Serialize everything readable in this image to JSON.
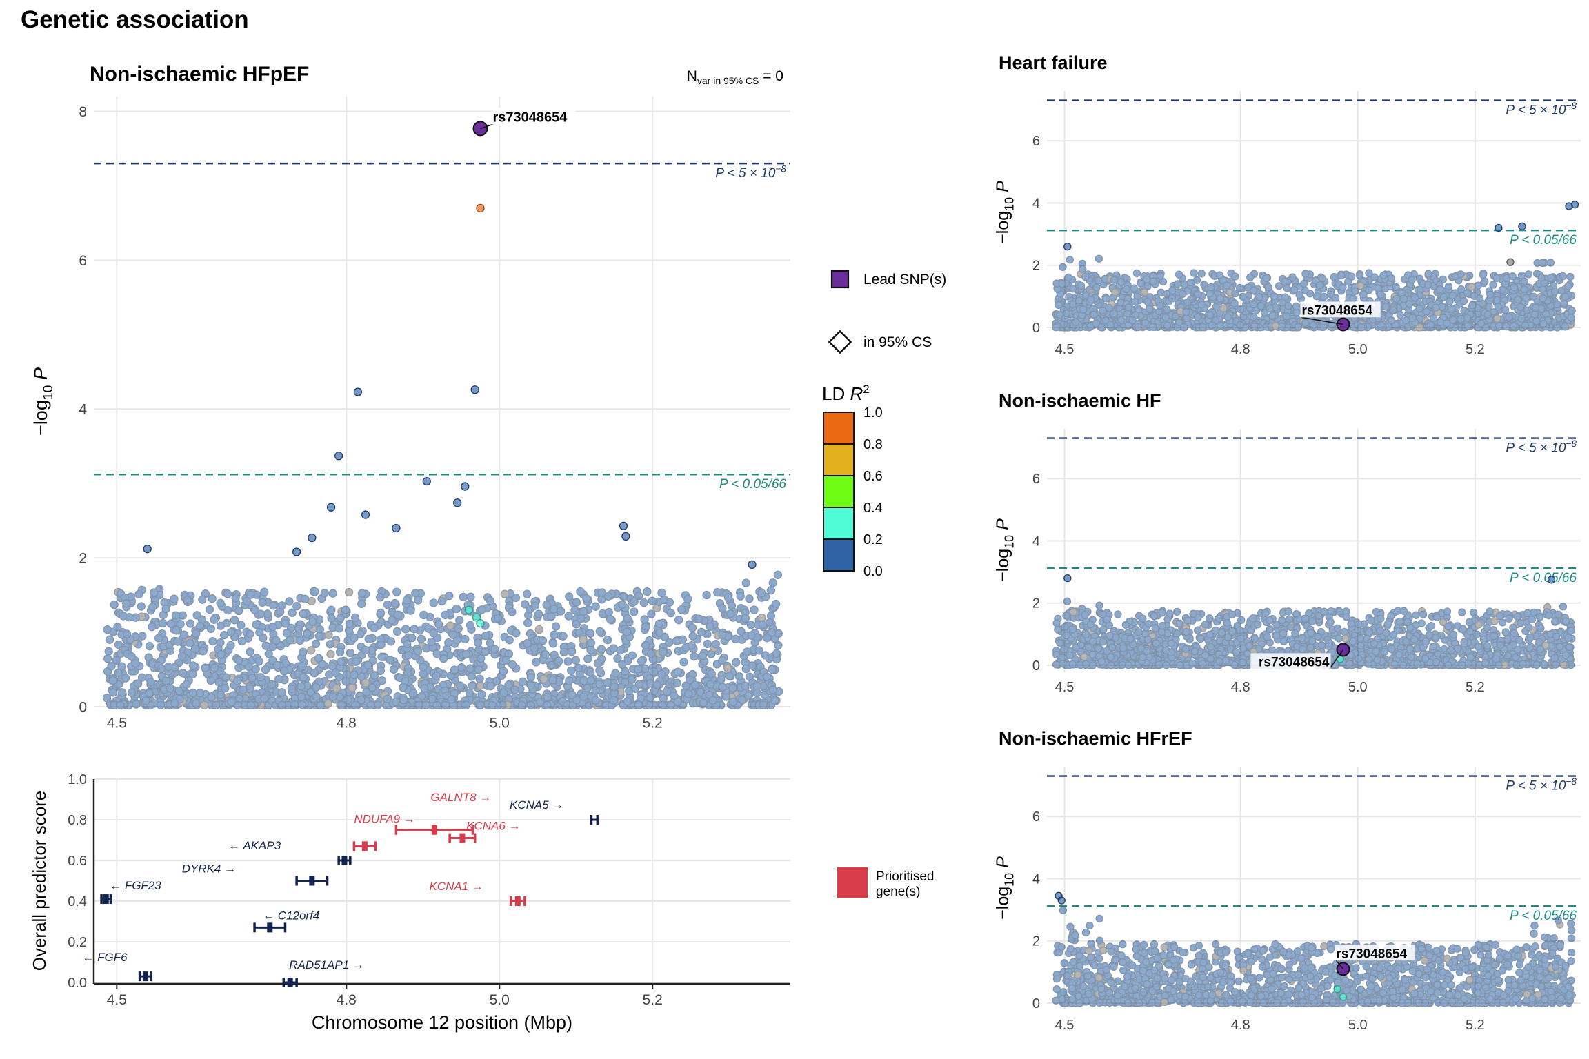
{
  "figure_title": "Genetic association",
  "colors": {
    "ld_bins": [
      "#2e63a6",
      "#4ffcd6",
      "#6efc14",
      "#e3b11e",
      "#ea6a14"
    ],
    "grey_point": "#7a7a7a",
    "lead_snp": "#6a2f9c",
    "genome_wide_line": "#1f3a66",
    "bonferroni_line": "#1e8a85",
    "gene_prioritised": "#d63c4a",
    "gene_other": "#13234d",
    "grid": "#e6e6e6"
  },
  "legend": {
    "lead_snp_label": "Lead SNP(s)",
    "cs_label": "in 95% CS",
    "ld_title": "LD R²",
    "ld_breaks": [
      "1.0",
      "0.8",
      "0.6",
      "0.4",
      "0.2",
      "0.0"
    ],
    "prioritised_label": [
      "Prioritised",
      "gene(s)"
    ]
  },
  "chart_data": [
    {
      "type": "scatter",
      "panel": "main",
      "title": "Non-ischaemic HFpEF",
      "annotation": "N_var in 95% CS = 0",
      "ylabel": "−log10 P",
      "xlim": [
        4.47,
        5.38
      ],
      "ylim": [
        0,
        8.2
      ],
      "x_ticks": [
        4.5,
        4.8,
        5.0,
        5.2
      ],
      "y_ticks": [
        0,
        2,
        4,
        6,
        8
      ],
      "thresholds": [
        {
          "label": "P < 5×10⁻⁸",
          "y": 7.3
        },
        {
          "label": "P < 0.05/66",
          "y": 3.12
        }
      ],
      "lead_snp": {
        "label": "rs73048654",
        "x": 4.975,
        "y": 7.77
      },
      "highlight_points": [
        {
          "x": 4.975,
          "y": 6.7,
          "ld_bin": "0.8-1.0"
        },
        {
          "x": 4.815,
          "y": 4.23,
          "ld_bin": "0.0-0.2"
        },
        {
          "x": 4.968,
          "y": 4.26,
          "ld_bin": "0.0-0.2"
        },
        {
          "x": 4.79,
          "y": 3.37,
          "ld_bin": "0.0-0.2"
        },
        {
          "x": 4.905,
          "y": 3.03,
          "ld_bin": "0.0-0.2"
        },
        {
          "x": 4.955,
          "y": 2.96,
          "ld_bin": "0.0-0.2"
        },
        {
          "x": 4.945,
          "y": 2.74,
          "ld_bin": "0.0-0.2"
        },
        {
          "x": 4.78,
          "y": 2.68,
          "ld_bin": "0.0-0.2"
        },
        {
          "x": 4.825,
          "y": 2.58,
          "ld_bin": "0.0-0.2"
        },
        {
          "x": 5.162,
          "y": 2.43,
          "ld_bin": "0.0-0.2"
        },
        {
          "x": 4.865,
          "y": 2.4,
          "ld_bin": "0.0-0.2"
        },
        {
          "x": 5.165,
          "y": 2.29,
          "ld_bin": "0.0-0.2"
        },
        {
          "x": 4.755,
          "y": 2.27,
          "ld_bin": "0.0-0.2"
        },
        {
          "x": 4.54,
          "y": 2.12,
          "ld_bin": "0.0-0.2"
        },
        {
          "x": 4.735,
          "y": 2.08,
          "ld_bin": "0.0-0.2"
        },
        {
          "x": 5.33,
          "y": 1.91,
          "ld_bin": "0.0-0.2"
        },
        {
          "x": 4.96,
          "y": 1.3,
          "ld_bin": "0.2-0.4"
        },
        {
          "x": 4.97,
          "y": 1.2,
          "ld_bin": "0.2-0.4"
        },
        {
          "x": 4.975,
          "y": 1.12,
          "ld_bin": "0.2-0.4"
        }
      ],
      "background": "about 2,000 variants at -log10 P 0–1.9 across the whole window, mostly LD R² 0.0–0.2, a few grey"
    },
    {
      "type": "table",
      "panel": "genes",
      "xlabel": "Chromosome 12 position (Mbp)",
      "ylabel": "Overall predictor score",
      "xlim": [
        4.47,
        5.38
      ],
      "ylim": [
        0,
        1.0
      ],
      "x_ticks": [
        4.5,
        4.8,
        5.0,
        5.2
      ],
      "y_ticks": [
        0.0,
        0.2,
        0.4,
        0.6,
        0.8,
        1.0
      ],
      "genes": [
        {
          "label": "← FGF6",
          "start": 4.53,
          "end": 4.545,
          "score": 0.03,
          "prioritised": false
        },
        {
          "label": "RAD51AP1 →",
          "start": 4.718,
          "end": 4.735,
          "score": 0.0,
          "prioritised": false
        },
        {
          "label": "← FGF23",
          "start": 4.48,
          "end": 4.492,
          "score": 0.41,
          "prioritised": false
        },
        {
          "label": "← C12orf4",
          "start": 4.68,
          "end": 4.72,
          "score": 0.27,
          "prioritised": false
        },
        {
          "label": "DYRK4 →",
          "start": 4.735,
          "end": 4.775,
          "score": 0.5,
          "prioritised": false
        },
        {
          "label": "← AKAP3",
          "start": 4.79,
          "end": 4.805,
          "score": 0.6,
          "prioritised": false
        },
        {
          "label": "NDUFA9 →",
          "start": 4.81,
          "end": 4.838,
          "score": 0.67,
          "prioritised": true
        },
        {
          "label": "GALNT8 →",
          "start": 4.865,
          "end": 4.965,
          "score": 0.75,
          "prioritised": true
        },
        {
          "label": "KCNA6 →",
          "start": 4.935,
          "end": 4.968,
          "score": 0.71,
          "prioritised": true
        },
        {
          "label": "KCNA1 →",
          "start": 5.015,
          "end": 5.033,
          "score": 0.4,
          "prioritised": true
        },
        {
          "label": "KCNA5 →",
          "start": 5.12,
          "end": 5.128,
          "score": 0.8,
          "prioritised": false
        }
      ]
    },
    {
      "type": "scatter",
      "panel": "side",
      "title": "Heart failure",
      "ylabel": "−log10 P",
      "xlim": [
        4.47,
        5.38
      ],
      "ylim": [
        -0.2,
        7.6
      ],
      "x_ticks": [
        4.5,
        4.8,
        5.0,
        5.2
      ],
      "y_ticks": [
        0,
        2,
        4,
        6
      ],
      "thresholds": [
        {
          "label": "P < 5×10⁻⁸",
          "y": 7.3
        },
        {
          "label": "P < 0.05/66",
          "y": 3.12
        }
      ],
      "lead_snp": {
        "label": "rs73048654",
        "x": 4.975,
        "y": 0.1
      },
      "highlight_points": [
        {
          "x": 5.37,
          "y": 3.95,
          "ld_bin": "0.0-0.2"
        },
        {
          "x": 5.36,
          "y": 3.9,
          "ld_bin": "0.0-0.2"
        },
        {
          "x": 5.28,
          "y": 3.25,
          "ld_bin": "0.0-0.2"
        },
        {
          "x": 5.24,
          "y": 3.2,
          "ld_bin": "0.0-0.2"
        },
        {
          "x": 4.505,
          "y": 2.6,
          "ld_bin": "0.0-0.2"
        },
        {
          "x": 5.26,
          "y": 2.1,
          "ld_bin": "grey"
        }
      ],
      "background": "about 1,700 variants at -log10 P 0–2.4, mostly LD R² 0.0–0.2"
    },
    {
      "type": "scatter",
      "panel": "side",
      "title": "Non-ischaemic HF",
      "ylabel": "−log10 P",
      "xlim": [
        4.47,
        5.38
      ],
      "ylim": [
        -0.2,
        7.6
      ],
      "x_ticks": [
        4.5,
        4.8,
        5.0,
        5.2
      ],
      "y_ticks": [
        0,
        2,
        4,
        6
      ],
      "thresholds": [
        {
          "label": "P < 5×10⁻⁸",
          "y": 7.3
        },
        {
          "label": "P < 0.05/66",
          "y": 3.12
        }
      ],
      "lead_snp": {
        "label": "rs73048654",
        "x": 4.975,
        "y": 0.5
      },
      "highlight_points": [
        {
          "x": 5.33,
          "y": 2.75,
          "ld_bin": "0.0-0.2"
        },
        {
          "x": 4.505,
          "y": 2.8,
          "ld_bin": "0.0-0.2"
        },
        {
          "x": 4.97,
          "y": 0.2,
          "ld_bin": "0.2-0.4"
        }
      ],
      "background": "about 1,700 variants at -log10 P 0–2.4, mostly LD R² 0.0–0.2"
    },
    {
      "type": "scatter",
      "panel": "side",
      "title": "Non-ischaemic HFrEF",
      "ylabel": "−log10 P",
      "xlim": [
        4.47,
        5.38
      ],
      "ylim": [
        -0.2,
        7.6
      ],
      "x_ticks": [
        4.5,
        4.8,
        5.0,
        5.2
      ],
      "y_ticks": [
        0,
        2,
        4,
        6
      ],
      "thresholds": [
        {
          "label": "P < 5×10⁻⁸",
          "y": 7.3
        },
        {
          "label": "P < 0.05/66",
          "y": 3.12
        }
      ],
      "lead_snp": {
        "label": "rs73048654",
        "x": 4.975,
        "y": 1.1
      },
      "highlight_points": [
        {
          "x": 4.49,
          "y": 3.45,
          "ld_bin": "0.0-0.2"
        },
        {
          "x": 4.495,
          "y": 3.3,
          "ld_bin": "0.0-0.2"
        },
        {
          "x": 4.965,
          "y": 0.45,
          "ld_bin": "0.2-0.4"
        },
        {
          "x": 4.975,
          "y": 0.2,
          "ld_bin": "0.2-0.4"
        }
      ],
      "background": "about 1,700 variants at -log10 P 0–3.0, mostly LD R² 0.0–0.2"
    }
  ]
}
